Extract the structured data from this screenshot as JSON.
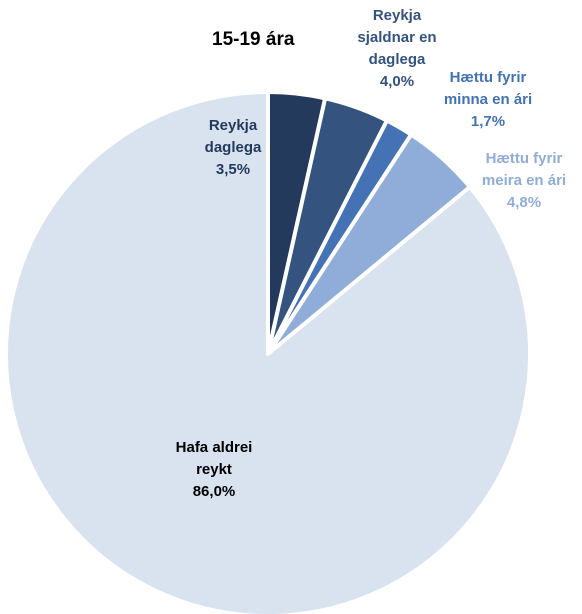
{
  "chart_data": {
    "type": "pie",
    "title": "15-19 ára",
    "slices": [
      {
        "name": "Reykja daglega",
        "lines": [
          "Reykja",
          "daglega",
          "3,5%"
        ],
        "value": 3.5,
        "color": "#243a5c",
        "label_color": "#243a5c"
      },
      {
        "name": "Reykja sjaldnar en daglega",
        "lines": [
          "Reykja",
          "sjaldnar en",
          "daglega",
          "4,0%"
        ],
        "value": 4.0,
        "color": "#34547f",
        "label_color": "#34547f"
      },
      {
        "name": "Hættu fyrir minna en ári",
        "lines": [
          "Hættu fyrir",
          "minna en ári",
          "1,7%"
        ],
        "value": 1.7,
        "color": "#4472b4",
        "label_color": "#4472b4"
      },
      {
        "name": "Hættu fyrir meira en ári",
        "lines": [
          "Hættu fyrir",
          "meira en ári",
          "4,8%"
        ],
        "value": 4.8,
        "color": "#8fadd8",
        "label_color": "#8fadd8"
      },
      {
        "name": "Hafa aldrei reykt",
        "lines": [
          "Hafa aldrei",
          "reykt",
          "86,0%"
        ],
        "value": 86.0,
        "color": "#d8e3ef",
        "label_color": "#000000"
      }
    ],
    "legend": "none"
  }
}
